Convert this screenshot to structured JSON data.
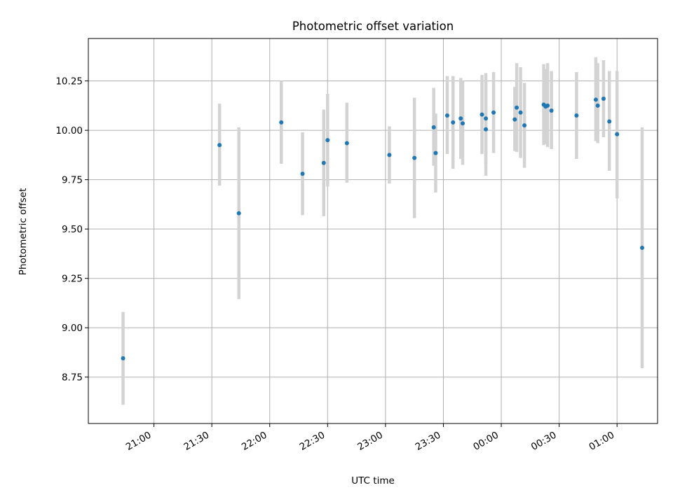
{
  "chart_data": {
    "type": "scatter",
    "title": "Photometric offset variation",
    "xlabel": "UTC time",
    "ylabel": "Photometric offset",
    "grid": true,
    "x_ticks": [
      "21:00",
      "21:30",
      "22:00",
      "22:30",
      "23:00",
      "23:30",
      "00:00",
      "00:30",
      "01:00"
    ],
    "y_ticks": [
      "8.75",
      "9.00",
      "9.25",
      "9.50",
      "9.75",
      "10.00",
      "10.25"
    ],
    "x_tick_minutes": [
      1260,
      1290,
      1320,
      1350,
      1380,
      1410,
      1440,
      1470,
      1500
    ],
    "y_tick_values": [
      8.75,
      9.0,
      9.25,
      9.5,
      9.75,
      10.0,
      10.25
    ],
    "xlim_minutes": [
      1226,
      1521
    ],
    "ylim": [
      8.515,
      10.465
    ],
    "marker_color": "#1f77b4",
    "errorbar_color": "#d3d3d3",
    "points": [
      {
        "t": "20:44",
        "y": 8.845,
        "lo": 8.61,
        "hi": 9.08
      },
      {
        "t": "21:34",
        "y": 9.925,
        "lo": 9.72,
        "hi": 10.135
      },
      {
        "t": "21:44",
        "y": 9.58,
        "lo": 9.145,
        "hi": 10.015
      },
      {
        "t": "22:06",
        "y": 10.04,
        "lo": 9.83,
        "hi": 10.25
      },
      {
        "t": "22:17",
        "y": 9.78,
        "lo": 9.57,
        "hi": 9.99
      },
      {
        "t": "22:28",
        "y": 9.835,
        "lo": 9.565,
        "hi": 10.105
      },
      {
        "t": "22:30",
        "y": 9.95,
        "lo": 9.715,
        "hi": 10.185
      },
      {
        "t": "22:40",
        "y": 9.935,
        "lo": 9.735,
        "hi": 10.14
      },
      {
        "t": "23:02",
        "y": 9.875,
        "lo": 9.73,
        "hi": 10.02
      },
      {
        "t": "23:15",
        "y": 9.86,
        "lo": 9.555,
        "hi": 10.165
      },
      {
        "t": "23:25",
        "y": 10.015,
        "lo": 9.82,
        "hi": 10.215
      },
      {
        "t": "23:26",
        "y": 9.885,
        "lo": 9.685,
        "hi": 10.085
      },
      {
        "t": "23:32",
        "y": 10.075,
        "lo": 9.88,
        "hi": 10.275
      },
      {
        "t": "23:35",
        "y": 10.04,
        "lo": 9.805,
        "hi": 10.275
      },
      {
        "t": "23:39",
        "y": 10.06,
        "lo": 9.855,
        "hi": 10.265
      },
      {
        "t": "23:40",
        "y": 10.035,
        "lo": 9.825,
        "hi": 10.25
      },
      {
        "t": "23:50",
        "y": 10.08,
        "lo": 9.88,
        "hi": 10.28
      },
      {
        "t": "23:52",
        "y": 10.005,
        "lo": 9.77,
        "hi": 10.24
      },
      {
        "t": "23:52",
        "y": 10.06,
        "lo": 9.83,
        "hi": 10.29
      },
      {
        "t": "23:56",
        "y": 10.09,
        "lo": 9.885,
        "hi": 10.295
      },
      {
        "t": "00:07",
        "y": 10.055,
        "lo": 9.895,
        "hi": 10.22
      },
      {
        "t": "00:08",
        "y": 10.115,
        "lo": 9.89,
        "hi": 10.34
      },
      {
        "t": "00:10",
        "y": 10.09,
        "lo": 9.86,
        "hi": 10.32
      },
      {
        "t": "00:12",
        "y": 10.025,
        "lo": 9.81,
        "hi": 10.24
      },
      {
        "t": "00:22",
        "y": 10.13,
        "lo": 9.925,
        "hi": 10.335
      },
      {
        "t": "00:23",
        "y": 10.12,
        "lo": 9.93,
        "hi": 10.31
      },
      {
        "t": "00:24",
        "y": 10.125,
        "lo": 9.915,
        "hi": 10.34
      },
      {
        "t": "00:26",
        "y": 10.1,
        "lo": 9.905,
        "hi": 10.3
      },
      {
        "t": "00:39",
        "y": 10.075,
        "lo": 9.855,
        "hi": 10.295
      },
      {
        "t": "00:49",
        "y": 10.155,
        "lo": 9.945,
        "hi": 10.37
      },
      {
        "t": "00:50",
        "y": 10.125,
        "lo": 9.935,
        "hi": 10.34
      },
      {
        "t": "00:53",
        "y": 10.16,
        "lo": 9.965,
        "hi": 10.355
      },
      {
        "t": "00:56",
        "y": 10.045,
        "lo": 9.795,
        "hi": 10.3
      },
      {
        "t": "01:00",
        "y": 9.98,
        "lo": 9.655,
        "hi": 10.3
      },
      {
        "t": "01:13",
        "y": 9.405,
        "lo": 8.795,
        "hi": 10.015
      }
    ]
  }
}
